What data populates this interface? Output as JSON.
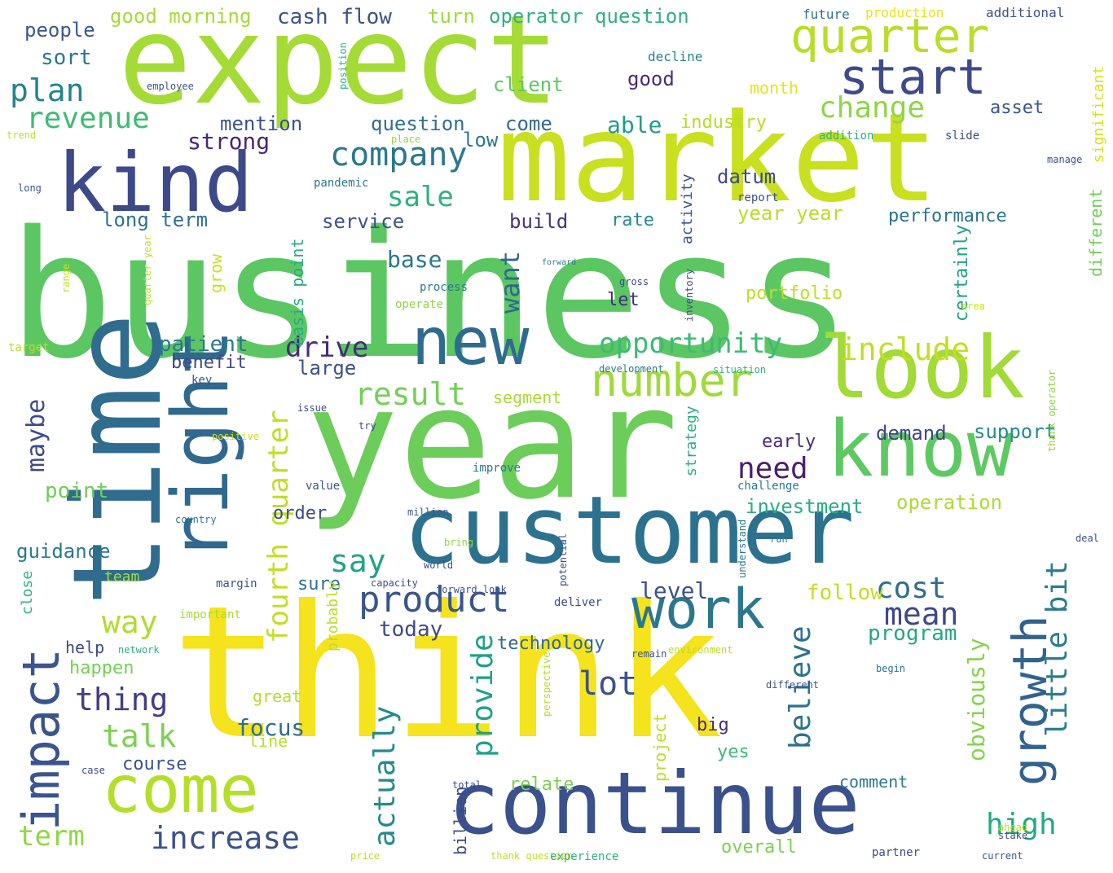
{
  "words": [
    {
      "text": "business",
      "color": "#5cc663"
    },
    {
      "text": "think",
      "color": "#f4e31d"
    },
    {
      "text": "year",
      "color": "#6ccd5a"
    },
    {
      "text": "expect",
      "color": "#a5db36"
    },
    {
      "text": "market",
      "color": "#c8e020"
    },
    {
      "text": "customer",
      "color": "#2c728e"
    },
    {
      "text": "continue",
      "color": "#3b518b"
    },
    {
      "text": "time",
      "color": "#2f6c8e"
    },
    {
      "text": "know",
      "color": "#5ec962"
    },
    {
      "text": "look",
      "color": "#a2da37"
    },
    {
      "text": "kind",
      "color": "#3e4989"
    },
    {
      "text": "right",
      "color": "#31688e"
    },
    {
      "text": "new",
      "color": "#2f6b8e"
    },
    {
      "text": "come",
      "color": "#b5de2b"
    },
    {
      "text": "work",
      "color": "#2a788e"
    },
    {
      "text": "quarter",
      "color": "#b8de29"
    },
    {
      "text": "start",
      "color": "#3e4a89"
    },
    {
      "text": "growth",
      "color": "#33638d"
    },
    {
      "text": "impact",
      "color": "#3a548c"
    },
    {
      "text": "number",
      "color": "#9fda3a"
    },
    {
      "text": "company",
      "color": "#2a788e"
    },
    {
      "text": "product",
      "color": "#39558c"
    },
    {
      "text": "increase",
      "color": "#3b528b"
    },
    {
      "text": "result",
      "color": "#73d056"
    },
    {
      "text": "include",
      "color": "#c2df23"
    },
    {
      "text": "change",
      "color": "#8ed645"
    },
    {
      "text": "revenue",
      "color": "#3dbc74"
    },
    {
      "text": "plan",
      "color": "#26828e"
    },
    {
      "text": "sale",
      "color": "#2db27d"
    },
    {
      "text": "drive",
      "color": "#472c7a"
    },
    {
      "text": "opportunity",
      "color": "#3bbb75"
    },
    {
      "text": "thing",
      "color": "#433e85"
    },
    {
      "text": "talk",
      "color": "#7ad151"
    },
    {
      "text": "way",
      "color": "#b0dd2f"
    },
    {
      "text": "term",
      "color": "#90d743"
    },
    {
      "text": "mean",
      "color": "#3f4889"
    },
    {
      "text": "cost",
      "color": "#2e6e8e"
    },
    {
      "text": "high",
      "color": "#22a884"
    },
    {
      "text": "need",
      "color": "#481f70"
    },
    {
      "text": "lot",
      "color": "#3b528b"
    },
    {
      "text": "say",
      "color": "#20a386"
    },
    {
      "text": "fourth quarter",
      "color": "#c0df25"
    },
    {
      "text": "little bit",
      "color": "#287d8e"
    },
    {
      "text": "believe",
      "color": "#2c728e"
    },
    {
      "text": "actually",
      "color": "#238a8d"
    },
    {
      "text": "provide",
      "color": "#1fa287"
    },
    {
      "text": "maybe",
      "color": "#3e4a89"
    },
    {
      "text": "point",
      "color": "#6ece58"
    },
    {
      "text": "guidance",
      "color": "#2a788e"
    },
    {
      "text": "performance",
      "color": "#2c728e"
    },
    {
      "text": "demand",
      "color": "#414487"
    },
    {
      "text": "support",
      "color": "#228c8d"
    },
    {
      "text": "level",
      "color": "#3b528b"
    },
    {
      "text": "program",
      "color": "#22a884"
    },
    {
      "text": "today",
      "color": "#3e4a89"
    },
    {
      "text": "focus",
      "color": "#2e6e8e"
    },
    {
      "text": "want",
      "color": "#31688e"
    },
    {
      "text": "base",
      "color": "#2a788e"
    },
    {
      "text": "strong",
      "color": "#482878"
    },
    {
      "text": "patient",
      "color": "#2a788e"
    },
    {
      "text": "large",
      "color": "#3b528b"
    },
    {
      "text": "investment",
      "color": "#29af7f"
    },
    {
      "text": "operation",
      "color": "#aadc32"
    },
    {
      "text": "obviously",
      "color": "#84d44b"
    },
    {
      "text": "follow",
      "color": "#c0df25"
    },
    {
      "text": "service",
      "color": "#3b528b"
    },
    {
      "text": "build",
      "color": "#46337f"
    },
    {
      "text": "rate",
      "color": "#238a8d"
    },
    {
      "text": "year year",
      "color": "#b8de29"
    },
    {
      "text": "long term",
      "color": "#2c728e"
    },
    {
      "text": "able",
      "color": "#1f9e89"
    },
    {
      "text": "good",
      "color": "#472d7b"
    },
    {
      "text": "client",
      "color": "#5ec962"
    },
    {
      "text": "question",
      "color": "#2d708e"
    },
    {
      "text": "come",
      "color": "#31688e"
    },
    {
      "text": "low",
      "color": "#2a788e"
    },
    {
      "text": "datum",
      "color": "#3e4a89"
    },
    {
      "text": "industry",
      "color": "#b5de2b"
    },
    {
      "text": "asset",
      "color": "#39558c"
    },
    {
      "text": "mention",
      "color": "#3b528b"
    },
    {
      "text": "people",
      "color": "#38598c"
    },
    {
      "text": "sort",
      "color": "#2a788e"
    },
    {
      "text": "good morning",
      "color": "#a5db36"
    },
    {
      "text": "cash flow",
      "color": "#3b528b"
    },
    {
      "text": "turn",
      "color": "#9fda3a"
    },
    {
      "text": "operator question",
      "color": "#2db27d"
    },
    {
      "text": "month",
      "color": "#e5e419"
    },
    {
      "text": "decline",
      "color": "#26828e"
    },
    {
      "text": "future",
      "color": "#2c728e"
    },
    {
      "text": "production",
      "color": "#e7e419"
    },
    {
      "text": "additional",
      "color": "#3b528b"
    },
    {
      "text": "significant",
      "color": "#d8e219"
    },
    {
      "text": "different",
      "color": "#6ece58"
    },
    {
      "text": "certainly",
      "color": "#1fa187"
    },
    {
      "text": "portfolio",
      "color": "#c0df25"
    },
    {
      "text": "let",
      "color": "#472a7a"
    },
    {
      "text": "basis point",
      "color": "#27ad81"
    },
    {
      "text": "activity",
      "color": "#3b528b"
    },
    {
      "text": "grow",
      "color": "#c8e020"
    },
    {
      "text": "benefit",
      "color": "#3e4a89"
    },
    {
      "text": "segment",
      "color": "#a8db34"
    },
    {
      "text": "early",
      "color": "#482878"
    },
    {
      "text": "strategy",
      "color": "#29af7f"
    },
    {
      "text": "order",
      "color": "#3e4a89"
    },
    {
      "text": "sure",
      "color": "#2c728e"
    },
    {
      "text": "technology",
      "color": "#31688e"
    },
    {
      "text": "help",
      "color": "#3f4889"
    },
    {
      "text": "happen",
      "color": "#75d054"
    },
    {
      "text": "great",
      "color": "#b0dd2f"
    },
    {
      "text": "line",
      "color": "#b5de2b"
    },
    {
      "text": "course",
      "color": "#3b528b"
    },
    {
      "text": "big",
      "color": "#472d7b"
    },
    {
      "text": "yes",
      "color": "#3bbb75"
    },
    {
      "text": "project",
      "color": "#bade28"
    },
    {
      "text": "relate",
      "color": "#7ad151"
    },
    {
      "text": "comment",
      "color": "#2a788e"
    },
    {
      "text": "overall",
      "color": "#7ad151"
    },
    {
      "text": "billion",
      "color": "#3e4a89"
    },
    {
      "text": "probably",
      "color": "#b8de29"
    },
    {
      "text": "team",
      "color": "#a5db36"
    },
    {
      "text": "margin",
      "color": "#3b528b"
    },
    {
      "text": "close",
      "color": "#2db27d"
    },
    {
      "text": "important",
      "color": "#a8db34"
    },
    {
      "text": "network",
      "color": "#2db27d"
    },
    {
      "text": "deliver",
      "color": "#3e4a89"
    },
    {
      "text": "target",
      "color": "#b5de2b"
    },
    {
      "text": "pandemic",
      "color": "#2a788e"
    },
    {
      "text": "improve",
      "color": "#2a788e"
    },
    {
      "text": "issue",
      "color": "#3e4a89"
    },
    {
      "text": "key",
      "color": "#39558c"
    },
    {
      "text": "place",
      "color": "#8ed645"
    },
    {
      "text": "process",
      "color": "#2a788e"
    },
    {
      "text": "operate",
      "color": "#8ed645"
    },
    {
      "text": "try",
      "color": "#3e4a89"
    },
    {
      "text": "value",
      "color": "#39558c"
    },
    {
      "text": "country",
      "color": "#2a788e"
    },
    {
      "text": "positive",
      "color": "#c8e020"
    },
    {
      "text": "development",
      "color": "#2a788e"
    },
    {
      "text": "situation",
      "color": "#2db27d"
    },
    {
      "text": "inventory",
      "color": "#3e4a89"
    },
    {
      "text": "employee",
      "color": "#3b528b"
    },
    {
      "text": "trend",
      "color": "#c0df25"
    },
    {
      "text": "long",
      "color": "#39558c"
    },
    {
      "text": "range",
      "color": "#c8e020"
    },
    {
      "text": "gross",
      "color": "#3e4a89"
    },
    {
      "text": "forward",
      "color": "#2a788e"
    },
    {
      "text": "run",
      "color": "#2a788e"
    },
    {
      "text": "environment",
      "color": "#b5de2b"
    },
    {
      "text": "thank question",
      "color": "#c0df25"
    },
    {
      "text": "experience",
      "color": "#2db27d"
    },
    {
      "text": "partner",
      "color": "#3e4a89"
    },
    {
      "text": "current",
      "color": "#39558c"
    },
    {
      "text": "ahead",
      "color": "#b5de2b"
    },
    {
      "text": "stake",
      "color": "#3e4a89"
    },
    {
      "text": "area",
      "color": "#c8e020"
    },
    {
      "text": "addition",
      "color": "#2db27d"
    },
    {
      "text": "slide",
      "color": "#3e4a89"
    },
    {
      "text": "manage",
      "color": "#3b528b"
    },
    {
      "text": "position",
      "color": "#2db27d"
    },
    {
      "text": "report",
      "color": "#3e4a89"
    },
    {
      "text": "understand",
      "color": "#2a788e"
    },
    {
      "text": "perspective",
      "color": "#b5de2b"
    },
    {
      "text": "potential",
      "color": "#3e4a89"
    },
    {
      "text": "different",
      "color": "#3b528b"
    },
    {
      "text": "remain",
      "color": "#3b528b"
    },
    {
      "text": "begin",
      "color": "#2a788e"
    },
    {
      "text": "quarter year",
      "color": "#c0df25"
    },
    {
      "text": "total",
      "color": "#3e4a89"
    },
    {
      "text": "price",
      "color": "#b5de2b"
    },
    {
      "text": "deal",
      "color": "#3b528b"
    },
    {
      "text": "bring",
      "color": "#8ed645"
    },
    {
      "text": "world",
      "color": "#3e4a89"
    },
    {
      "text": "capacity",
      "color": "#3e4a89"
    },
    {
      "text": "forward look",
      "color": "#3b528b"
    },
    {
      "text": "million",
      "color": "#39558c"
    },
    {
      "text": "thank operator",
      "color": "#8ed645"
    },
    {
      "text": "case",
      "color": "#3e4a89"
    },
    {
      "text": "challenge",
      "color": "#2a788e"
    }
  ]
}
